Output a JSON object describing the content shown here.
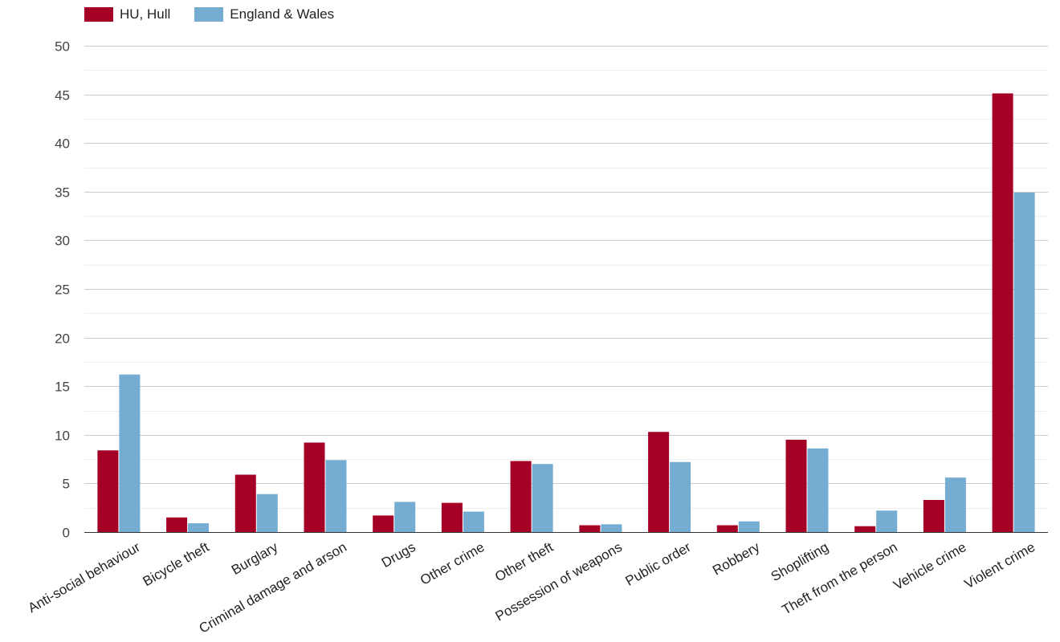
{
  "chart_data": {
    "type": "bar",
    "title": "",
    "xlabel": "",
    "ylabel": "",
    "ylim": [
      0,
      50
    ],
    "yticks": [
      0,
      5,
      10,
      15,
      20,
      25,
      30,
      35,
      40,
      45,
      50
    ],
    "grid": true,
    "legend_position": "top-left",
    "categories": [
      "Anti-social behaviour",
      "Bicycle theft",
      "Burglary",
      "Criminal damage and arson",
      "Drugs",
      "Other crime",
      "Other theft",
      "Possession of weapons",
      "Public order",
      "Robbery",
      "Shoplifting",
      "Theft from the person",
      "Vehicle crime",
      "Violent crime"
    ],
    "series": [
      {
        "name": "HU, Hull",
        "color": "#a50026",
        "values": [
          8.4,
          1.5,
          5.9,
          9.2,
          1.7,
          3.0,
          7.3,
          0.7,
          10.3,
          0.7,
          9.5,
          0.6,
          3.3,
          45.1
        ]
      },
      {
        "name": "England & Wales",
        "color": "#74add1",
        "values": [
          16.2,
          0.9,
          3.9,
          7.4,
          3.1,
          2.1,
          7.0,
          0.8,
          7.2,
          1.1,
          8.6,
          2.2,
          5.6,
          34.9
        ]
      }
    ]
  }
}
